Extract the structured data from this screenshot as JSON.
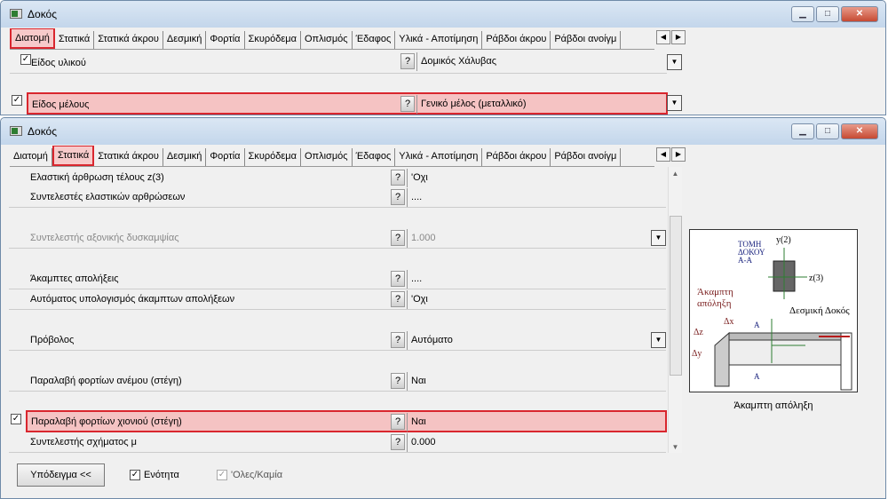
{
  "window_title": "Δοκός",
  "tabs": [
    "Διατομή",
    "Στατικά",
    "Στατικά άκρου",
    "Δεσμική",
    "Φορτία",
    "Σκυρόδεμα",
    "Οπλισμός",
    "Έδαφος",
    "Υλικά - Αποτίμηση",
    "Ράβδοι άκρου",
    "Ράβδοι ανοίγμ"
  ],
  "help_label": "?",
  "top": {
    "active_tab": "Διατομή",
    "rows": [
      {
        "label": "Είδος υλικού",
        "value": "Δομικός Χάλυβας",
        "checked": true
      },
      {
        "label": "Είδος μέλους",
        "value": "Γενικό μέλος (μεταλλικό)",
        "checked": true,
        "highlighted": true
      }
    ]
  },
  "bottom": {
    "active_tab": "Στατικά",
    "rows": [
      {
        "label": "Ελαστική άρθρωση τέλους z(3)",
        "value": "'Οχι",
        "checked": true
      },
      {
        "label": "Συντελεστές ελαστικών αρθρώσεων",
        "value": "....",
        "checked": true
      },
      {
        "label": "Συντελεστής αξονικής δυσκαμψίας",
        "value": "1.000",
        "checked": true,
        "disabled": true
      },
      {
        "label": "Άκαμπτες απολήξεις",
        "value": "....",
        "checked": true
      },
      {
        "label": "Αυτόματος υπολογισμός άκαμπτων απολήξεων",
        "value": "'Οχι",
        "checked": true
      },
      {
        "label": "Πρόβολος",
        "value": "Αυτόματο",
        "checked": true
      },
      {
        "label": "Παραλαβή φορτίων ανέμου (στέγη)",
        "value": "Ναι",
        "checked": true
      },
      {
        "label": "Παραλαβή φορτίων χιονιού (στέγη)",
        "value": "Ναι",
        "checked": true,
        "highlighted": true
      },
      {
        "label": "Συντελεστής σχήματος μ",
        "value": "0.000",
        "checked": true
      }
    ],
    "preview": {
      "section_title": [
        "ΤΟΜΗ",
        "ΔΟΚΟΥ",
        "Α-Α"
      ],
      "y_axis": "y(2)",
      "z_axis": "z(3)",
      "rigid_label": [
        "Άκαμπτη",
        "απόληξη"
      ],
      "tie_beam": "Δεσμική Δοκός",
      "dx": "Δx",
      "dz": "Δz",
      "dy": "Δy",
      "section_mark": "A",
      "caption": "Άκαμπτη απόληξη"
    },
    "hint_button": "Υπόδειγμα <<",
    "unit_checkbox": "Ενότητα",
    "all_none_checkbox": "'Ολες/Καμία"
  },
  "highlight_color": "#d9262e"
}
